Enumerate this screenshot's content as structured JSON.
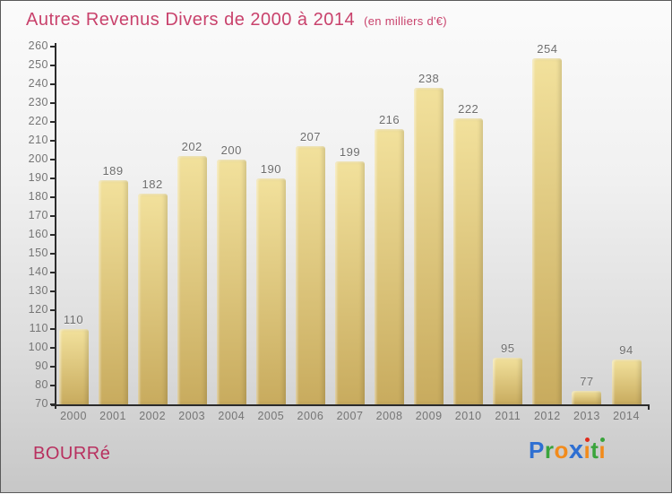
{
  "header": {
    "title": "Autres Revenus Divers de 2000 à 2014",
    "subtitle": "(en milliers d'€)"
  },
  "chart_data": {
    "type": "bar",
    "title": "Autres Revenus Divers de 2000 à 2014",
    "subtitle": "(en milliers d'€)",
    "unit": "milliers d'€",
    "categories": [
      "2000",
      "2001",
      "2002",
      "2003",
      "2004",
      "2005",
      "2006",
      "2007",
      "2008",
      "2009",
      "2010",
      "2011",
      "2012",
      "2013",
      "2014"
    ],
    "values": [
      110,
      189,
      182,
      202,
      200,
      190,
      207,
      199,
      216,
      238,
      222,
      95,
      254,
      77,
      94
    ],
    "ylim": [
      70,
      260
    ],
    "ytick_step": 10,
    "grid": false,
    "legend": null,
    "bar_labels_shown": true,
    "colors": {
      "bar_top": "#f2e19c",
      "bar_bottom": "#c8ab5e",
      "value_label": "#6e6e6e",
      "tick_label": "#757575",
      "axis": "#2b2b2b",
      "title": "#c9426c",
      "background_top": "#fbfbfb",
      "background_bottom": "#c7c7c7"
    }
  },
  "footer": {
    "brand": "BOURRé",
    "brand_color": "#b8305f",
    "logo": {
      "name": "Proxiti",
      "letters": [
        {
          "ch": "P",
          "color": "#2e6fd2"
        },
        {
          "ch": "r",
          "color": "#3aa43c"
        },
        {
          "ch": "o",
          "color": "#f28b1b"
        },
        {
          "ch": "x",
          "color": "#2e6fd2",
          "bold": true
        },
        {
          "ch": "i",
          "color": "#f28b1b",
          "dot": "#e02b1b"
        },
        {
          "ch": "t",
          "color": "#3aa43c"
        },
        {
          "ch": "i",
          "color": "#f28b1b",
          "dot": "#3aa43c"
        }
      ]
    }
  }
}
